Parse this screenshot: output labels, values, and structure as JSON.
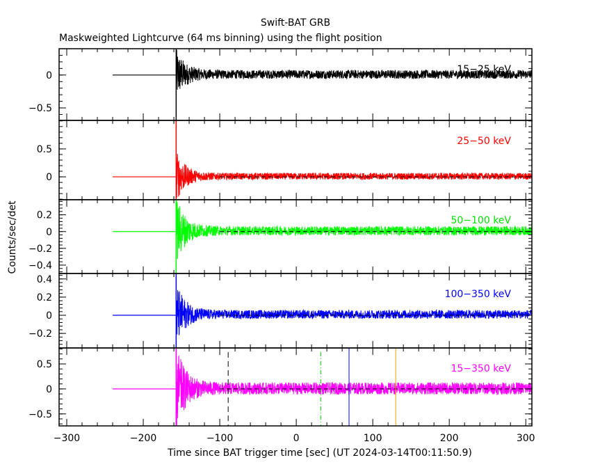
{
  "chart_data": {
    "type": "line",
    "title": "Swift-BAT GRB",
    "subtitle": "Maskweighted Lightcurve (64 ms binning) using the flight position",
    "xlabel": "Time since BAT trigger time [sec] (UT 2024-03-14T00:11:50.9)",
    "ylabel": "Counts/sec/det",
    "xlim": [
      -310,
      308
    ],
    "x_ticks": [
      -300,
      -200,
      -100,
      0,
      100,
      200,
      300
    ],
    "x_tick_labels": [
      "−300",
      "−200",
      "−100",
      "0",
      "100",
      "200",
      "300"
    ],
    "binning_sec": 0.064,
    "flat_segment": {
      "x_start": -240,
      "x_end": -157,
      "value": 0
    },
    "data_start": -157,
    "zero_dashed_line": {
      "x_start": -100,
      "x_end": 308
    },
    "panels": [
      {
        "name": "15-25 keV",
        "label": "15−25 keV",
        "color": "#000000",
        "ylim": [
          -0.69,
          0.4
        ],
        "ticks": [
          0,
          -0.5
        ],
        "tick_labels": [
          "0",
          "−0.5"
        ],
        "noise_initial": 0.33,
        "noise_late": 0.055,
        "dashed_zero": false,
        "label_color": "#000000"
      },
      {
        "name": "25-50 keV",
        "label": "25−50 keV",
        "color": "#ff0000",
        "ylim": [
          -0.41,
          1.01
        ],
        "ticks": [
          0.5,
          0
        ],
        "tick_labels": [
          "0.5",
          "0"
        ],
        "noise_initial": 0.4,
        "noise_late": 0.05,
        "dashed_zero": true,
        "label_color": "#ff0000"
      },
      {
        "name": "50-100 keV",
        "label": "50−100 keV",
        "color": "#00ff00",
        "ylim": [
          -0.5,
          0.38
        ],
        "ticks": [
          0.2,
          0,
          -0.2,
          -0.4
        ],
        "tick_labels": [
          "0.2",
          "0",
          "−0.2",
          "−0.4"
        ],
        "noise_initial": 0.35,
        "noise_late": 0.045,
        "dashed_zero": true,
        "label_color": "#00dd00"
      },
      {
        "name": "100-350 keV",
        "label": "100−350 keV",
        "color": "#0000ff",
        "ylim": [
          -0.36,
          0.46
        ],
        "ticks": [
          0.4,
          0.2,
          0,
          -0.2
        ],
        "tick_labels": [
          "0.4",
          "0.2",
          "0",
          "−0.2"
        ],
        "noise_initial": 0.3,
        "noise_late": 0.04,
        "dashed_zero": true,
        "label_color": "#0000ff"
      },
      {
        "name": "15-350 keV",
        "label": "15−350 keV",
        "color": "#ff00ff",
        "ylim": [
          -0.74,
          0.82
        ],
        "ticks": [
          0.5,
          0,
          -0.5
        ],
        "tick_labels": [
          "0.5",
          "0",
          "−0.5"
        ],
        "noise_initial": 0.75,
        "noise_late": 0.1,
        "dashed_zero": true,
        "label_color": "#ff00ff"
      }
    ],
    "markers": [
      {
        "name": "black-dashed-marker",
        "x": -89,
        "color": "#000000",
        "style": "dashed"
      },
      {
        "name": "green-dashdot-marker",
        "x": 32,
        "color": "#00cc00",
        "style": "dashdot"
      },
      {
        "name": "blue-marker",
        "x": 69,
        "color": "#0000ff",
        "style": "solid"
      },
      {
        "name": "orange-marker",
        "x": 130,
        "color": "#ff9900",
        "style": "solid"
      }
    ]
  }
}
